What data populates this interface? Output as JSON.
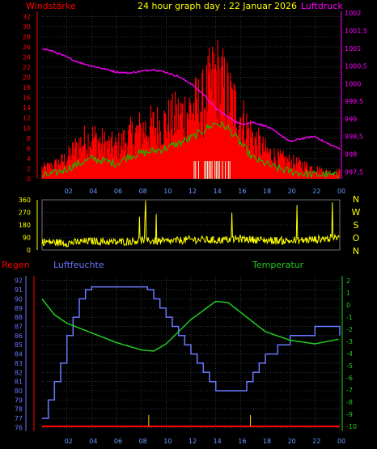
{
  "header": {
    "left": "Windstärke",
    "center": "24 hour graph day : 22 Januar 2026",
    "right": "Luftdruck"
  },
  "lower_labels": {
    "regen": "Regen",
    "luftfeuchte": "Luftfeuchte",
    "temperatur": "Temperatur"
  },
  "colors": {
    "wind": "#ff0000",
    "gust": "#ff0000",
    "wind_avg": "#00cc00",
    "pressure": "#ff00ff",
    "direction": "#ffff00",
    "humidity": "#6a78ff",
    "temperature": "#22cc22",
    "rain": "#ff0000",
    "grid": "#406060",
    "frame": "#909090",
    "header_center": "#ffff00",
    "compass": "#ffff00"
  },
  "compass": [
    "N",
    "W",
    "S",
    "O",
    "N"
  ],
  "chart_data": [
    {
      "type": "line",
      "name": "wind-and-pressure",
      "x_ticks": [
        "02",
        "04",
        "06",
        "08",
        "10",
        "12",
        "14",
        "16",
        "18",
        "20",
        "22",
        "00"
      ],
      "y_left": {
        "ticks": [
          0,
          2,
          4,
          6,
          8,
          10,
          12,
          14,
          16,
          18,
          20,
          22,
          24,
          26,
          28,
          30,
          32
        ],
        "range": [
          0,
          33
        ]
      },
      "y_right": {
        "ticks": [
          "997,5",
          "998",
          "998,5",
          "999",
          "999,5",
          "1000",
          "1000,5",
          "1001",
          "1001,5",
          "1002"
        ],
        "range": [
          997.3,
          1002.05
        ]
      },
      "series": [
        {
          "name": "Luftdruck",
          "axis": "right",
          "hours": [
            0,
            1,
            2,
            3,
            4,
            5,
            6,
            7,
            8,
            9,
            10,
            11,
            12,
            13,
            14,
            15,
            16,
            17,
            18,
            19,
            20,
            21,
            22,
            23,
            24
          ],
          "values": [
            1001.0,
            1000.9,
            1000.75,
            1000.6,
            1000.5,
            1000.42,
            1000.33,
            1000.3,
            1000.35,
            1000.4,
            1000.32,
            1000.2,
            1000.0,
            999.7,
            999.3,
            999.05,
            998.85,
            998.9,
            998.8,
            998.6,
            998.35,
            998.45,
            998.5,
            998.3,
            998.15
          ]
        },
        {
          "name": "wind-average",
          "axis": "left",
          "hours": [
            0,
            1,
            2,
            3,
            4,
            5,
            6,
            7,
            8,
            9,
            10,
            11,
            12,
            13,
            14,
            15,
            16,
            17,
            18,
            19,
            20,
            21,
            22,
            23,
            24
          ],
          "values": [
            0.5,
            1,
            2,
            3,
            4,
            3.5,
            3,
            4.5,
            5,
            5.5,
            6,
            7,
            8,
            9.5,
            11,
            10,
            7,
            4,
            3,
            2,
            1.5,
            1,
            0.8,
            0.8,
            0.5
          ]
        },
        {
          "name": "wind-gust-envelope",
          "axis": "left",
          "hours": [
            0,
            1,
            2,
            3,
            4,
            5,
            6,
            7,
            8,
            9,
            10,
            11,
            12,
            13,
            14,
            15,
            16,
            17,
            18,
            19,
            20,
            21,
            22,
            23,
            24
          ],
          "values": [
            3,
            4,
            6,
            10,
            12,
            10,
            9,
            12,
            14,
            15,
            16,
            18,
            20,
            22,
            30,
            24,
            18,
            12,
            8,
            6,
            5,
            4,
            3,
            2,
            2
          ]
        }
      ]
    },
    {
      "type": "line",
      "name": "wind-direction",
      "y_ticks": [
        0,
        90,
        180,
        270,
        360
      ],
      "y_range": [
        0,
        360
      ],
      "series": [
        {
          "name": "direction",
          "hours": [
            0,
            2,
            4,
            6,
            8,
            10,
            12,
            14,
            16,
            18,
            20,
            22,
            24
          ],
          "values": [
            60,
            50,
            65,
            55,
            70,
            60,
            75,
            70,
            80,
            70,
            65,
            75,
            90
          ]
        }
      ]
    },
    {
      "type": "line",
      "name": "humidity-temperature",
      "x_ticks": [
        "02",
        "04",
        "06",
        "08",
        "10",
        "12",
        "14",
        "16",
        "18",
        "20",
        "22",
        "00"
      ],
      "y_left": {
        "ticks": [
          76,
          77,
          78,
          79,
          80,
          81,
          82,
          83,
          84,
          85,
          86,
          87,
          88,
          89,
          90,
          91,
          92
        ],
        "range": [
          75.6,
          92.5
        ]
      },
      "y_right": {
        "ticks": [
          -10,
          -9,
          -8,
          -7,
          -6,
          -5,
          -4,
          -3,
          -2,
          -1,
          0,
          1,
          2
        ],
        "range": [
          -10.4,
          2.4
        ]
      },
      "series": [
        {
          "name": "Luftfeuchte",
          "axis": "left",
          "hours": [
            0,
            0.5,
            1,
            1.5,
            2,
            2.5,
            3,
            3.5,
            4,
            6,
            8,
            8.5,
            9,
            9.5,
            10,
            10.5,
            11,
            11.5,
            12,
            12.5,
            13,
            13.5,
            14,
            16,
            16.5,
            17,
            17.5,
            18,
            19,
            20,
            21,
            22,
            23.5,
            24
          ],
          "values": [
            77,
            79,
            81,
            83,
            86,
            88,
            90,
            91,
            91.3,
            91.3,
            91.3,
            91,
            90,
            89,
            88,
            87,
            86,
            85,
            84,
            83,
            82,
            81,
            80,
            80,
            81,
            82,
            83,
            84,
            85,
            86,
            86,
            87,
            87,
            86
          ]
        },
        {
          "name": "Temperatur",
          "axis": "right",
          "hours": [
            0,
            1,
            2,
            4,
            6,
            8,
            9,
            10,
            12,
            14,
            15,
            16,
            18,
            20,
            22,
            24
          ],
          "values": [
            0.5,
            -0.8,
            -1.5,
            -2.3,
            -3.1,
            -3.7,
            -3.8,
            -3.2,
            -1.2,
            0.3,
            0.2,
            -0.6,
            -2.2,
            -2.9,
            -3.2,
            -2.8
          ]
        },
        {
          "name": "Regen",
          "axis": "rain",
          "hours": [
            0,
            24
          ],
          "values": [
            0,
            0
          ]
        }
      ]
    }
  ]
}
